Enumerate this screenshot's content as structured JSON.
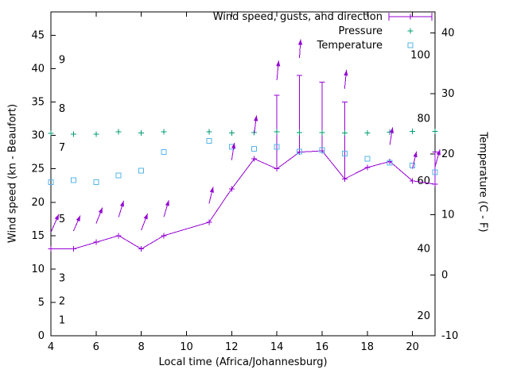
{
  "chart_data": {
    "type": "line",
    "xlabel": "Local time (Africa/Johannesburg)",
    "ylabel": "Wind speed (kn - Beaufort)",
    "y2label": "Temperature (C - F)",
    "xlim": [
      4,
      21
    ],
    "ylim": [
      0,
      48.5
    ],
    "y2lim": [
      -10,
      43.5
    ],
    "xticks": [
      4,
      6,
      8,
      10,
      12,
      14,
      16,
      18,
      20
    ],
    "yticks": [
      0,
      5,
      10,
      15,
      20,
      25,
      30,
      35,
      40,
      45
    ],
    "y2ticks": [
      -10,
      0,
      10,
      20,
      30,
      40
    ],
    "beaufort_labels": [
      {
        "label": "1",
        "kn": 2.3
      },
      {
        "label": "2",
        "kn": 5.2
      },
      {
        "label": "3",
        "kn": 8.6
      },
      {
        "label": "5",
        "kn": 17.5
      },
      {
        "label": "7",
        "kn": 28.2
      },
      {
        "label": "8",
        "kn": 34
      },
      {
        "label": "9",
        "kn": 41.3
      }
    ],
    "fahrenheit_labels": [
      {
        "label": "20",
        "kn": 3
      },
      {
        "label": "40",
        "kn": 13
      },
      {
        "label": "60",
        "kn": 23.2
      },
      {
        "label": "80",
        "kn": 32.5
      },
      {
        "label": "100",
        "kn": 42
      }
    ],
    "x": [
      4,
      5,
      6,
      7,
      8,
      9,
      11,
      12,
      13,
      14,
      15,
      16,
      17,
      18,
      19,
      20,
      21
    ],
    "series": [
      {
        "name": "Wind speed, gusts, and direction",
        "color": "#9400d3",
        "values": [
          13,
          13,
          14,
          15,
          13,
          15,
          17,
          22,
          26.5,
          25,
          27.5,
          27.7,
          23.5,
          25.2,
          26.1,
          23.2,
          22.7
        ],
        "gusts": [
          13,
          13,
          14,
          15,
          13,
          15,
          17,
          22,
          26.5,
          36,
          39,
          38,
          35,
          25.2,
          26.1,
          23.2,
          27.5
        ]
      },
      {
        "name": "Pressure",
        "color": "#009e73",
        "values": [
          30.3,
          30.2,
          30.2,
          30.55,
          30.4,
          30.55,
          30.55,
          30.4,
          30.45,
          30.55,
          30.45,
          30.45,
          30.4,
          30.4,
          30.5,
          30.6,
          30.6
        ]
      },
      {
        "name": "Temperature",
        "color": "#56b4e9",
        "values": [
          23,
          23.3,
          23,
          24,
          24.7,
          27.5,
          29.2,
          28.3,
          28,
          28.3,
          27.6,
          27.8,
          27.3,
          26.5,
          25.9,
          25.5,
          24.5
        ]
      }
    ],
    "wind_arrows": [
      {
        "x": 4,
        "base": 15.5,
        "tip": 18.2,
        "dx": 0.35
      },
      {
        "x": 5,
        "base": 15.7,
        "tip": 18.0,
        "dx": 0.3
      },
      {
        "x": 6,
        "base": 16.8,
        "tip": 19.2,
        "dx": 0.28
      },
      {
        "x": 7,
        "base": 17.8,
        "tip": 20.2,
        "dx": 0.22
      },
      {
        "x": 8,
        "base": 15.8,
        "tip": 18.3,
        "dx": 0.28
      },
      {
        "x": 9,
        "base": 17.8,
        "tip": 20.3,
        "dx": 0.22
      },
      {
        "x": 11,
        "base": 19.8,
        "tip": 22.3,
        "dx": 0.18
      },
      {
        "x": 12,
        "base": 26.3,
        "tip": 28.9,
        "dx": 0.12
      },
      {
        "x": 13,
        "base": 30.3,
        "tip": 33.0,
        "dx": 0.1
      },
      {
        "x": 14,
        "base": 38.3,
        "tip": 41.2,
        "dx": 0.08
      },
      {
        "x": 15,
        "base": 41.6,
        "tip": 44.4,
        "dx": 0.05
      },
      {
        "x": 17,
        "base": 37.0,
        "tip": 39.8,
        "dx": 0.08
      },
      {
        "x": 19,
        "base": 28.6,
        "tip": 31.2,
        "dx": 0.12
      },
      {
        "x": 20,
        "base": 25.0,
        "tip": 27.6,
        "dx": 0.18
      },
      {
        "x": 21,
        "base": 25.3,
        "tip": 27.9,
        "dx": 0.22
      }
    ],
    "legend": {
      "position": "top-right"
    }
  }
}
